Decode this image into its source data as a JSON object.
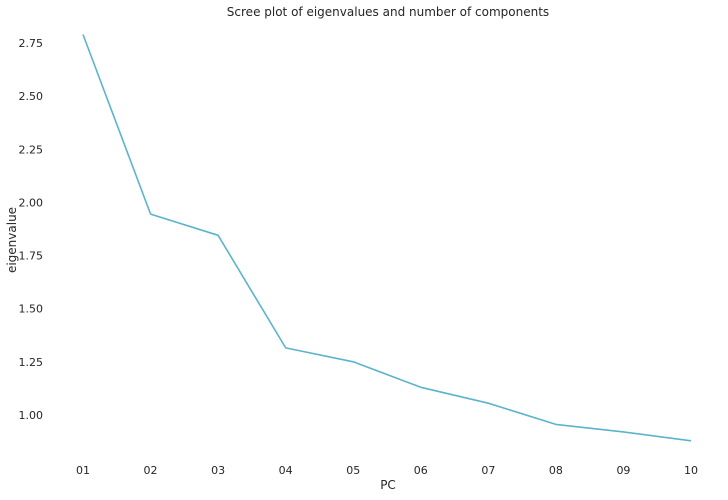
{
  "chart_data": {
    "type": "line",
    "title": "Scree plot of eigenvalues and number of components",
    "xlabel": "PC",
    "ylabel": "eigenvalue",
    "categories": [
      "01",
      "02",
      "03",
      "04",
      "05",
      "06",
      "07",
      "08",
      "09",
      "10"
    ],
    "series": [
      {
        "color": "#5bb4cc",
        "values": [
          2.79,
          1.945,
          1.845,
          1.315,
          1.25,
          1.13,
          1.055,
          0.955,
          0.92,
          0.878
        ]
      }
    ],
    "yticks": [
      "1.00",
      "1.25",
      "1.50",
      "1.75",
      "2.00",
      "2.25",
      "2.50",
      "2.75"
    ],
    "ylim": [
      0.83,
      2.83
    ],
    "grid": false,
    "legend": "none"
  }
}
